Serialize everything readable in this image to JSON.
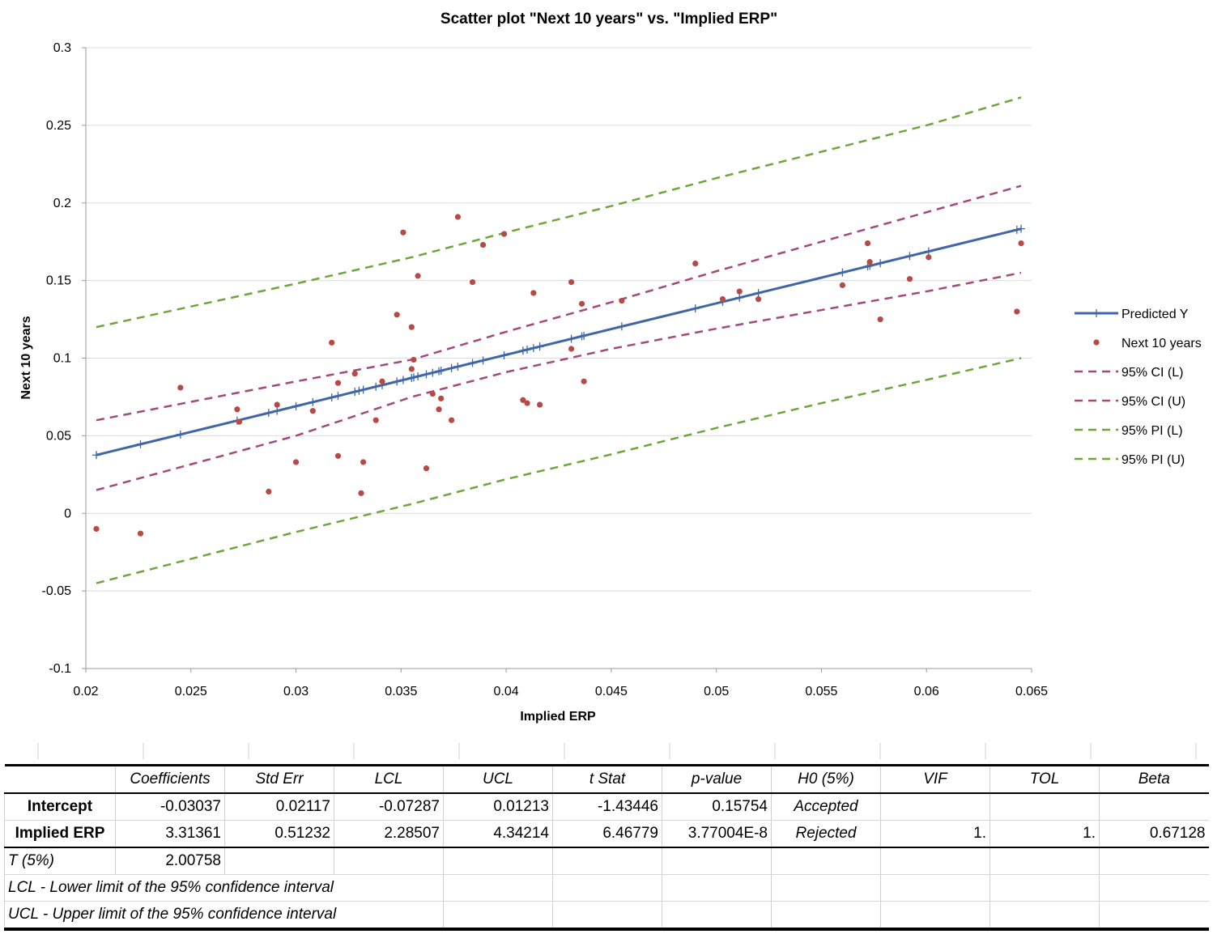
{
  "chart_data": {
    "type": "scatter",
    "title": "Scatter plot \"Next 10 years\" vs. \"Implied ERP\"",
    "xlabel": "Implied ERP",
    "ylabel": "Next 10 years",
    "xlim": [
      0.02,
      0.065
    ],
    "ylim": [
      -0.1,
      0.3
    ],
    "xticks": [
      "0.02",
      "0.025",
      "0.03",
      "0.035",
      "0.04",
      "0.045",
      "0.05",
      "0.055",
      "0.06",
      "0.065"
    ],
    "yticks": [
      "-0.1",
      "-0.05",
      "0",
      "0.05",
      "0.1",
      "0.15",
      "0.2",
      "0.25",
      "0.3"
    ],
    "grid": true,
    "legend_position": "right",
    "regression": {
      "intercept": -0.03037,
      "slope": 3.31361
    },
    "series": [
      {
        "name": "Predicted Y",
        "kind": "line-markers",
        "color": "#4066a8",
        "x": [
          0.0205,
          0.0226,
          0.0245,
          0.0272,
          0.0287,
          0.0291,
          0.03,
          0.0308,
          0.0317,
          0.032,
          0.0328,
          0.033,
          0.0332,
          0.0338,
          0.0341,
          0.0348,
          0.0351,
          0.0355,
          0.0356,
          0.0358,
          0.0362,
          0.0365,
          0.0368,
          0.0369,
          0.0374,
          0.0377,
          0.0384,
          0.0389,
          0.0399,
          0.0408,
          0.041,
          0.0413,
          0.0416,
          0.0431,
          0.0436,
          0.0437,
          0.0455,
          0.049,
          0.0503,
          0.0511,
          0.052,
          0.056,
          0.0572,
          0.0573,
          0.0578,
          0.0592,
          0.0601,
          0.0643,
          0.0645
        ]
      },
      {
        "name": "Next 10 years",
        "kind": "points",
        "color": "#b84a45",
        "x": [
          0.0205,
          0.0226,
          0.0245,
          0.0272,
          0.0273,
          0.0287,
          0.0291,
          0.03,
          0.0308,
          0.0317,
          0.032,
          0.032,
          0.0328,
          0.0331,
          0.0332,
          0.0338,
          0.0341,
          0.0348,
          0.0351,
          0.0355,
          0.0355,
          0.0356,
          0.0358,
          0.0362,
          0.0365,
          0.0368,
          0.0369,
          0.0374,
          0.0377,
          0.0384,
          0.0389,
          0.0399,
          0.0408,
          0.041,
          0.0413,
          0.0416,
          0.0431,
          0.0431,
          0.0436,
          0.0437,
          0.0455,
          0.049,
          0.0503,
          0.0511,
          0.052,
          0.056,
          0.0572,
          0.0573,
          0.0578,
          0.0592,
          0.0601,
          0.0643,
          0.0645
        ],
        "y": [
          -0.01,
          -0.013,
          0.081,
          0.067,
          0.059,
          0.014,
          0.07,
          0.033,
          0.066,
          0.11,
          0.037,
          0.084,
          0.09,
          0.013,
          0.033,
          0.06,
          0.085,
          0.128,
          0.181,
          0.12,
          0.093,
          0.099,
          0.153,
          0.029,
          0.077,
          0.067,
          0.074,
          0.06,
          0.191,
          0.149,
          0.173,
          0.18,
          0.073,
          0.071,
          0.142,
          0.07,
          0.149,
          0.106,
          0.135,
          0.085,
          0.137,
          0.161,
          0.138,
          0.143,
          0.138,
          0.147,
          0.174,
          0.162,
          0.125,
          0.151,
          0.165,
          0.13,
          0.174
        ]
      },
      {
        "name": "95% CI (L)",
        "kind": "dashed",
        "color": "#a24a7e",
        "x": [
          0.0205,
          0.03,
          0.0355,
          0.04,
          0.045,
          0.05,
          0.055,
          0.06,
          0.0645
        ],
        "y": [
          0.015,
          0.05,
          0.075,
          0.091,
          0.106,
          0.119,
          0.131,
          0.143,
          0.155
        ]
      },
      {
        "name": "95% CI (U)",
        "kind": "dashed",
        "color": "#a24a7e",
        "x": [
          0.0205,
          0.03,
          0.0355,
          0.04,
          0.045,
          0.05,
          0.055,
          0.06,
          0.0645
        ],
        "y": [
          0.06,
          0.085,
          0.099,
          0.117,
          0.136,
          0.156,
          0.175,
          0.194,
          0.211
        ]
      },
      {
        "name": "95% PI (L)",
        "kind": "dashed",
        "color": "#6fa63c",
        "x": [
          0.0205,
          0.03,
          0.0355,
          0.04,
          0.045,
          0.05,
          0.055,
          0.06,
          0.0645
        ],
        "y": [
          -0.045,
          -0.012,
          0.006,
          0.022,
          0.038,
          0.055,
          0.071,
          0.086,
          0.1
        ]
      },
      {
        "name": "95% PI (U)",
        "kind": "dashed",
        "color": "#6fa63c",
        "x": [
          0.0205,
          0.03,
          0.0355,
          0.04,
          0.045,
          0.05,
          0.055,
          0.06,
          0.0645
        ],
        "y": [
          0.12,
          0.148,
          0.165,
          0.181,
          0.198,
          0.216,
          0.233,
          0.25,
          0.268
        ]
      }
    ]
  },
  "table": {
    "headers": [
      "",
      "Coefficients",
      "Std Err",
      "LCL",
      "UCL",
      "t Stat",
      "p-value",
      "H0 (5%)",
      "VIF",
      "TOL",
      "Beta"
    ],
    "rows": [
      [
        "Intercept",
        "-0.03037",
        "0.02117",
        "-0.07287",
        "0.01213",
        "-1.43446",
        "0.15754",
        "Accepted",
        "",
        "",
        ""
      ],
      [
        "Implied ERP",
        "3.31361",
        "0.51232",
        "2.28507",
        "4.34214",
        "6.46779",
        "3.77004E-8",
        "Rejected",
        "1.",
        "1.",
        "0.67128"
      ]
    ],
    "t_label": "T (5%)",
    "t_value": "2.00758",
    "note_lcl": "LCL - Lower limit of the 95% confidence interval",
    "note_ucl": "UCL - Upper limit of the 95% confidence interval"
  }
}
